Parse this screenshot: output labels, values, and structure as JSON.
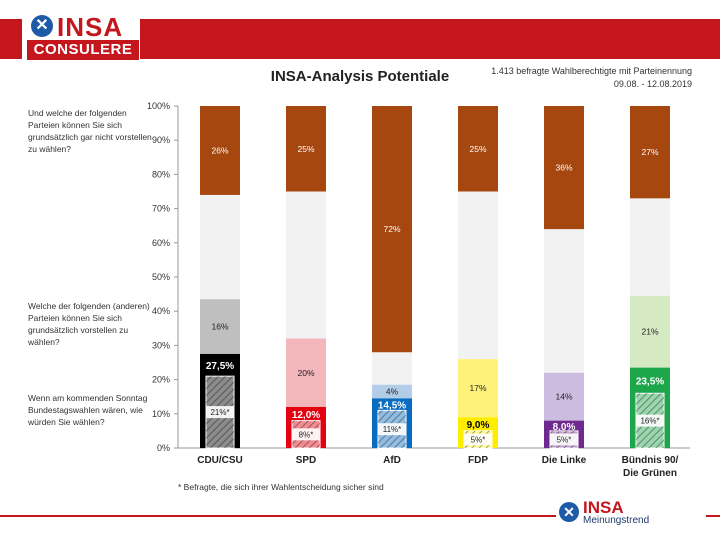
{
  "logo": {
    "icon": "x-cross-icon",
    "brand": "INSA",
    "sub": "CONSULERE"
  },
  "footer_logo": {
    "icon": "x-cross-icon",
    "brand": "INSA",
    "sub": "Meinungstrend"
  },
  "colors": {
    "brand_red": "#c4161c",
    "brand_blue": "#1f5aa6"
  },
  "header": {
    "sample_note": "1.413 befragte Wahlberechtigte mit Parteinennung",
    "date_note": "09.08. - 12.08.2019"
  },
  "questions": {
    "q1": "Und welche der folgenden Parteien können Sie sich grundsätzlich gar nicht vorstellen zu wählen?",
    "q2": "Welche der folgenden (anderen) Parteien können Sie sich grundsätzlich vorstellen zu wählen?",
    "q3": "Wenn am kommenden Sonntag Bundestagswahlen wären, wie würden Sie wählen?"
  },
  "footnote": "* Befragte, die sich ihrer Wahlentscheidung sicher sind",
  "chart_data": {
    "type": "bar",
    "stacked": true,
    "title": "INSA-Analysis Potentiale",
    "ylim": [
      0,
      100
    ],
    "yticks": [
      "0%",
      "10%",
      "20%",
      "30%",
      "40%",
      "50%",
      "60%",
      "70%",
      "80%",
      "90%",
      "100%"
    ],
    "grid": false,
    "categories": [
      "CDU/CSU",
      "SPD",
      "AfD",
      "FDP",
      "Die Linke",
      "Bündnis 90/ Die Grünen"
    ],
    "series": [
      {
        "key": "sicher",
        "values": [
          21,
          8,
          11,
          5,
          5,
          16
        ],
        "labels": [
          "21%*",
          "8%*",
          "11%*",
          "5%*",
          "5%*",
          "16%*"
        ]
      },
      {
        "key": "wahl",
        "values": [
          27.5,
          12.0,
          14.5,
          9.0,
          8.0,
          23.5
        ],
        "labels": [
          "27,5%",
          "12,0%",
          "14,5%",
          "9,0%",
          "8,0%",
          "23,5%"
        ]
      },
      {
        "key": "vorstellbar",
        "values": [
          16,
          20,
          4,
          17,
          14,
          21
        ],
        "labels": [
          "16%",
          "20%",
          "4%",
          "17%",
          "14%",
          "21%"
        ]
      },
      {
        "key": "nicht_vorstellbar",
        "values": [
          26,
          25,
          72,
          25,
          36,
          27
        ],
        "labels": [
          "26%",
          "25%",
          "72%",
          "25%",
          "36%",
          "27%"
        ]
      }
    ],
    "party_colors": {
      "vote": [
        "#000000",
        "#e3000f",
        "#0a6cc0",
        "#ffed00",
        "#6e2a8e",
        "#1ea64b"
      ],
      "potential": [
        "#bfbfbf",
        "#f2b6bb",
        "#b3cde9",
        "#fff27a",
        "#ccbde0",
        "#d5e9c2"
      ]
    },
    "reject_color": "#a5470f",
    "remainder_color": "#f2f2f2"
  }
}
